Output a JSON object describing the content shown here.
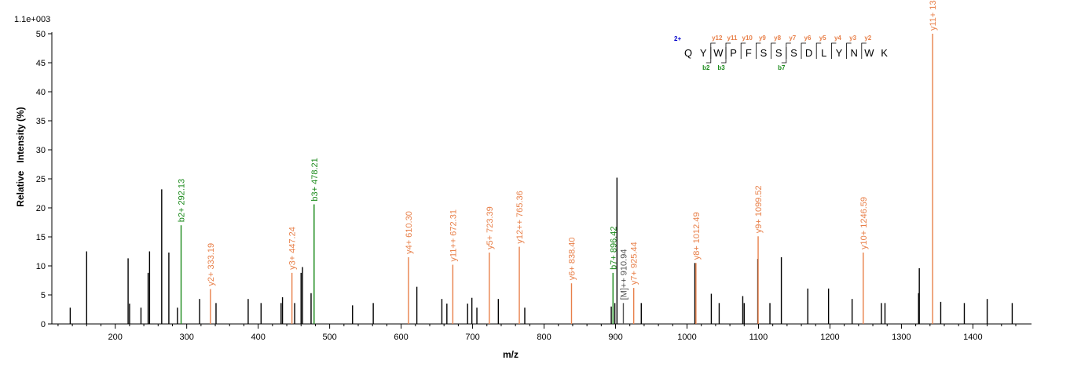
{
  "chart_data": {
    "type": "bar",
    "scale_label": "1.1e+003",
    "xlabel": "m/z",
    "ylabel": "Relative   Intensity (%)",
    "xlim": [
      108,
      1482
    ],
    "ylim": [
      0,
      50
    ],
    "x_ticks": [
      200,
      300,
      400,
      500,
      600,
      700,
      800,
      900,
      1000,
      1100,
      1200,
      1300,
      1400
    ],
    "y_ticks": [
      0,
      5,
      10,
      15,
      20,
      25,
      30,
      35,
      40,
      45,
      50
    ],
    "colors": {
      "unassigned": "#000000",
      "b_ion": "#1a8a1a",
      "y_ion": "#e8804a",
      "precursor": "#555555",
      "charge": "#0000cc"
    },
    "unassigned_peaks": [
      {
        "mz": 137,
        "intensity": 2.8
      },
      {
        "mz": 160,
        "intensity": 12.5
      },
      {
        "mz": 218,
        "intensity": 11.3
      },
      {
        "mz": 220,
        "intensity": 3.5
      },
      {
        "mz": 236,
        "intensity": 2.8
      },
      {
        "mz": 246,
        "intensity": 8.8
      },
      {
        "mz": 248,
        "intensity": 12.5
      },
      {
        "mz": 265,
        "intensity": 23.2
      },
      {
        "mz": 275,
        "intensity": 12.3
      },
      {
        "mz": 287,
        "intensity": 2.8
      },
      {
        "mz": 318,
        "intensity": 4.3
      },
      {
        "mz": 341,
        "intensity": 3.6
      },
      {
        "mz": 386,
        "intensity": 4.3
      },
      {
        "mz": 404,
        "intensity": 3.6
      },
      {
        "mz": 432,
        "intensity": 3.6
      },
      {
        "mz": 434,
        "intensity": 4.6
      },
      {
        "mz": 451,
        "intensity": 3.6
      },
      {
        "mz": 460,
        "intensity": 8.8
      },
      {
        "mz": 462,
        "intensity": 9.8
      },
      {
        "mz": 474,
        "intensity": 5.3
      },
      {
        "mz": 532,
        "intensity": 3.2
      },
      {
        "mz": 561,
        "intensity": 3.6
      },
      {
        "mz": 622,
        "intensity": 6.4
      },
      {
        "mz": 657,
        "intensity": 4.3
      },
      {
        "mz": 664,
        "intensity": 3.5
      },
      {
        "mz": 693,
        "intensity": 3.5
      },
      {
        "mz": 699,
        "intensity": 4.5
      },
      {
        "mz": 706,
        "intensity": 2.8
      },
      {
        "mz": 736,
        "intensity": 4.3
      },
      {
        "mz": 773,
        "intensity": 2.8
      },
      {
        "mz": 894,
        "intensity": 3.0
      },
      {
        "mz": 899,
        "intensity": 3.6
      },
      {
        "mz": 902,
        "intensity": 25.2
      },
      {
        "mz": 936,
        "intensity": 3.6
      },
      {
        "mz": 1034,
        "intensity": 5.2
      },
      {
        "mz": 1045,
        "intensity": 3.6
      },
      {
        "mz": 1078,
        "intensity": 4.8
      },
      {
        "mz": 1080,
        "intensity": 3.6
      },
      {
        "mz": 1099,
        "intensity": 11.2
      },
      {
        "mz": 1116,
        "intensity": 3.6
      },
      {
        "mz": 1132,
        "intensity": 11.5
      },
      {
        "mz": 1169,
        "intensity": 6.1
      },
      {
        "mz": 1198,
        "intensity": 6.1
      },
      {
        "mz": 1231,
        "intensity": 4.3
      },
      {
        "mz": 1272,
        "intensity": 3.6
      },
      {
        "mz": 1277,
        "intensity": 3.6
      },
      {
        "mz": 1324,
        "intensity": 5.3
      },
      {
        "mz": 1325,
        "intensity": 9.6
      },
      {
        "mz": 1355,
        "intensity": 3.8
      },
      {
        "mz": 1388,
        "intensity": 3.6
      },
      {
        "mz": 1420,
        "intensity": 4.3
      },
      {
        "mz": 1455,
        "intensity": 3.6
      },
      {
        "mz": 1011,
        "intensity": 10.5
      }
    ],
    "labeled_peaks": [
      {
        "mz": 292.13,
        "intensity": 17.0,
        "type": "b",
        "label": "b2+ 292.13"
      },
      {
        "mz": 333.19,
        "intensity": 6.0,
        "type": "y",
        "label": "y2+ 333.19"
      },
      {
        "mz": 447.24,
        "intensity": 8.8,
        "type": "y",
        "label": "y3+ 447.24"
      },
      {
        "mz": 478.21,
        "intensity": 20.6,
        "type": "b",
        "label": "b3+ 478.21"
      },
      {
        "mz": 610.3,
        "intensity": 11.5,
        "type": "y",
        "label": "y4+ 610.30"
      },
      {
        "mz": 672.31,
        "intensity": 10.2,
        "type": "y",
        "label": "y11++ 672.31"
      },
      {
        "mz": 723.39,
        "intensity": 12.3,
        "type": "y",
        "label": "y5+ 723.39"
      },
      {
        "mz": 765.36,
        "intensity": 13.3,
        "type": "y",
        "label": "y12++ 765.36"
      },
      {
        "mz": 838.4,
        "intensity": 7.0,
        "type": "y",
        "label": "y6+ 838.40"
      },
      {
        "mz": 896.42,
        "intensity": 8.8,
        "type": "b",
        "label": "b7+ 896.42"
      },
      {
        "mz": 910.94,
        "intensity": 3.6,
        "type": "precursor",
        "label": "[M]++ 910.94"
      },
      {
        "mz": 925.44,
        "intensity": 6.2,
        "type": "y",
        "label": "y7+ 925.44"
      },
      {
        "mz": 1012.49,
        "intensity": 10.5,
        "type": "y",
        "label": "y8+ 1012.49"
      },
      {
        "mz": 1099.52,
        "intensity": 15.1,
        "type": "y",
        "label": "y9+ 1099.52"
      },
      {
        "mz": 1246.59,
        "intensity": 12.3,
        "type": "y",
        "label": "y10+ 1246.59"
      },
      {
        "mz": 1343.65,
        "intensity": 50.0,
        "type": "y",
        "label": "y11+ 1343.65"
      }
    ]
  },
  "sequence": {
    "charge": "2+",
    "residues": [
      "Q",
      "Y",
      "W",
      "P",
      "F",
      "S",
      "S",
      "S",
      "D",
      "L",
      "Y",
      "N",
      "W",
      "K"
    ],
    "y_ions": [
      {
        "after": 2,
        "label": "y12"
      },
      {
        "after": 3,
        "label": "y11"
      },
      {
        "after": 4,
        "label": "y10"
      },
      {
        "after": 5,
        "label": "y9"
      },
      {
        "after": 6,
        "label": "y8"
      },
      {
        "after": 7,
        "label": "y7"
      },
      {
        "after": 8,
        "label": "y6"
      },
      {
        "after": 9,
        "label": "y5"
      },
      {
        "after": 10,
        "label": "y4"
      },
      {
        "after": 11,
        "label": "y3"
      },
      {
        "after": 12,
        "label": "y2"
      }
    ],
    "b_ions": [
      {
        "after": 2,
        "label": "b2"
      },
      {
        "after": 3,
        "label": "b3"
      },
      {
        "after": 7,
        "label": "b7"
      }
    ]
  }
}
